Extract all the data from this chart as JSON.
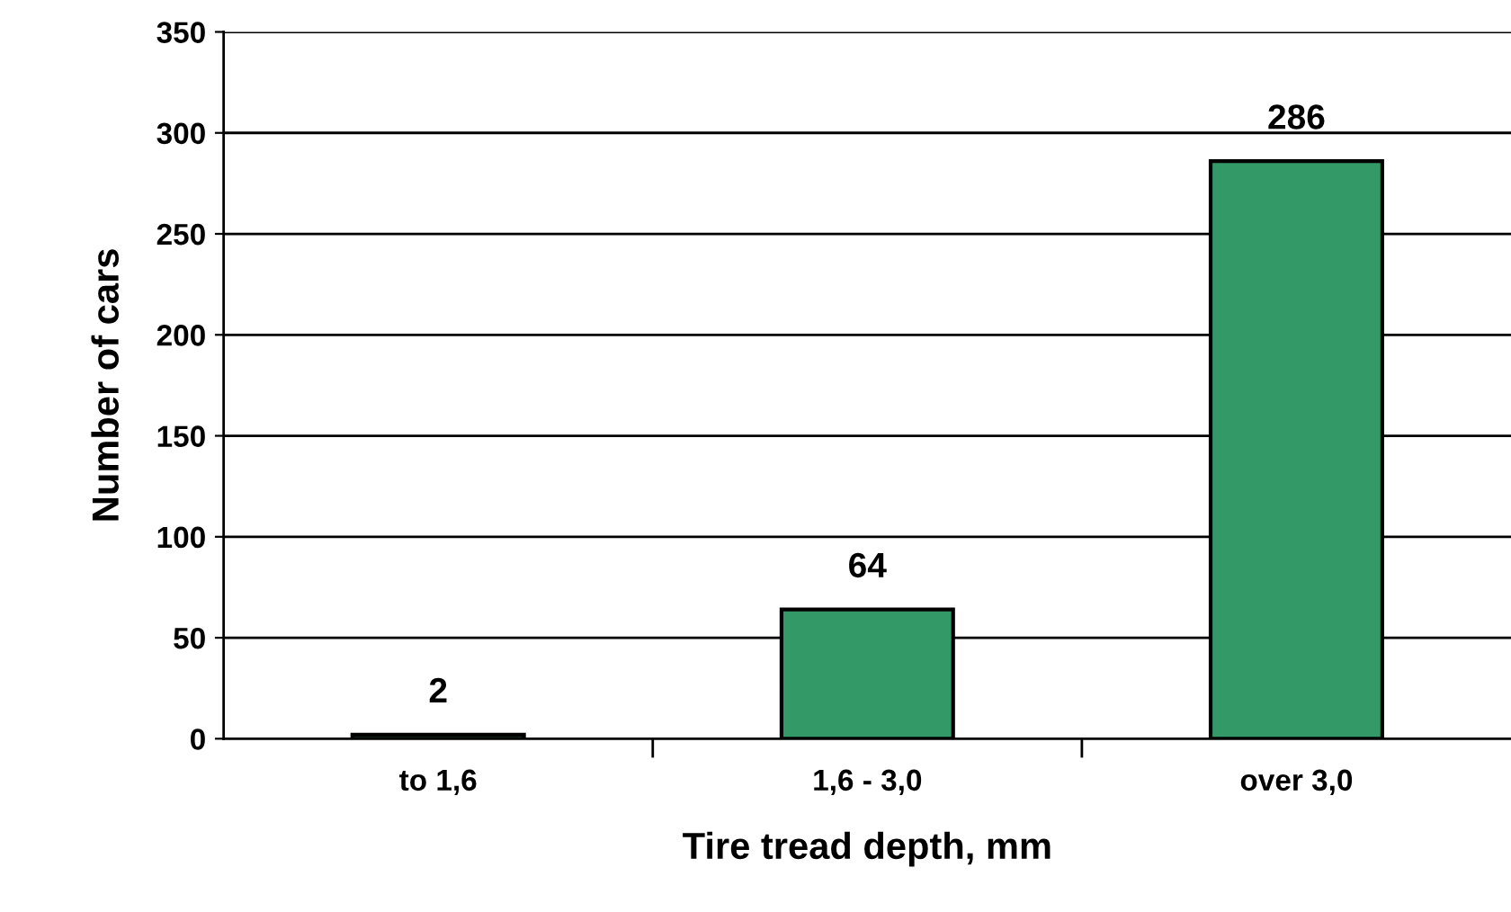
{
  "chart_data": {
    "type": "bar",
    "xlabel": "Tire tread depth, mm",
    "ylabel": "Number of cars",
    "categories": [
      "to 1,6",
      "1,6 - 3,0",
      "over 3,0"
    ],
    "values": [
      2,
      64,
      286
    ],
    "color": "#339966",
    "ylim": [
      0,
      350
    ],
    "yticks": [
      0,
      50,
      100,
      150,
      200,
      250,
      300,
      350
    ],
    "grid": "y",
    "data_labels": true
  }
}
